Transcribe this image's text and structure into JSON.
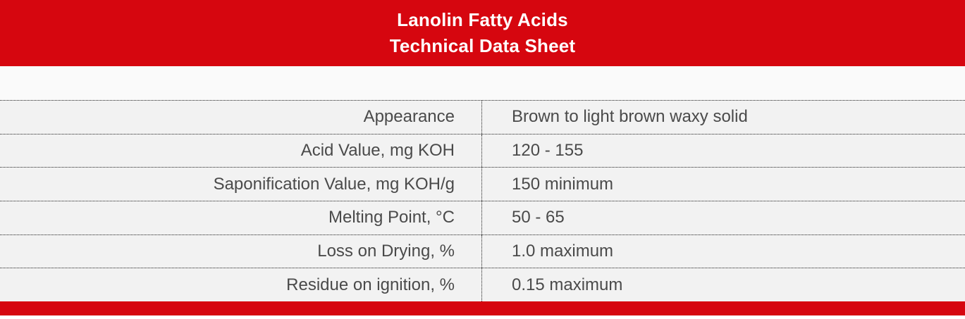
{
  "header": {
    "title_line1": "Lanolin Fatty Acids",
    "title_line2": "Technical Data Sheet"
  },
  "table": {
    "rows": [
      {
        "property": "Appearance",
        "value": "Brown to light brown waxy solid"
      },
      {
        "property": "Acid Value, mg KOH",
        "value": "120 - 155"
      },
      {
        "property": "Saponification Value, mg KOH/g",
        "value": "150 minimum"
      },
      {
        "property": "Melting Point, °C",
        "value": "50 - 65"
      },
      {
        "property": "Loss on Drying, %",
        "value": "1.0 maximum"
      },
      {
        "property": "Residue on ignition, %",
        "value": "0.15 maximum"
      }
    ]
  },
  "colors": {
    "accent_red": "#d6060f",
    "row_background": "#f2f2f2",
    "body_text": "#4a4a4a",
    "header_text": "#ffffff",
    "border_dotted": "#1f1f1f"
  }
}
